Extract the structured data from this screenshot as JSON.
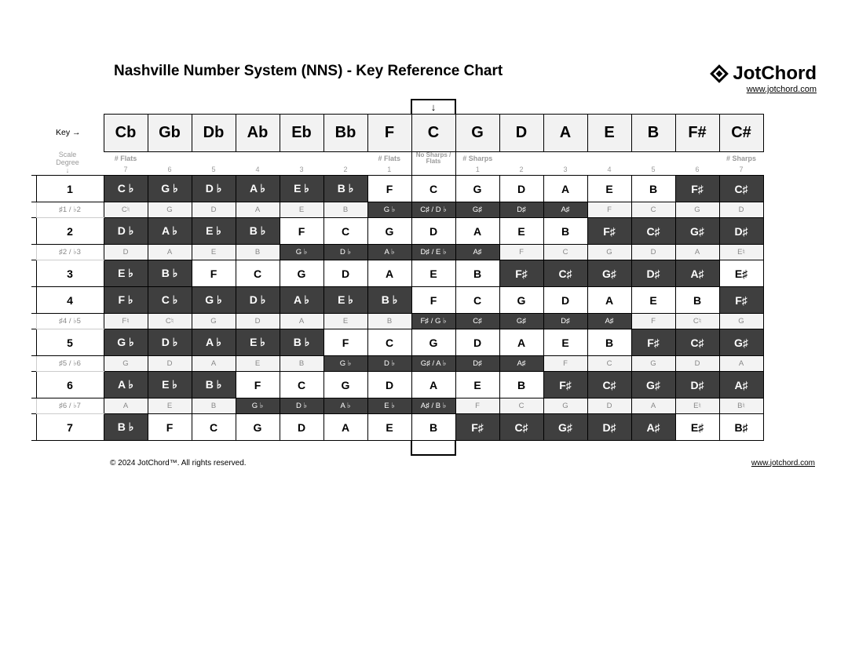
{
  "title": "Nashville Number System (NNS) - Key Reference Chart",
  "brand_name": "JotChord",
  "brand_url": "www.jotchord.com",
  "copyright": "© 2024 JotChord™. All rights reserved.",
  "key_label": "Key →",
  "scale_degree_label": "Scale\nDegree\n↓",
  "arrow_down": "↓",
  "keys": [
    "Cb",
    "Gb",
    "Db",
    "Ab",
    "Eb",
    "Bb",
    "F",
    "C",
    "G",
    "D",
    "A",
    "E",
    "B",
    "F#",
    "C#"
  ],
  "sub_labels": {
    "flats": "# Flats",
    "none": "No Sharps / Flats",
    "sharps": "# Sharps"
  },
  "sub_counts": [
    "7",
    "6",
    "5",
    "4",
    "3",
    "2",
    "1",
    "",
    "1",
    "2",
    "3",
    "4",
    "5",
    "6",
    "7"
  ],
  "colors": {
    "dark_bg": "#3f3f3f",
    "dark_fg": "#ffffff",
    "light_bg": "#ffffff",
    "light_fg": "#000000",
    "header_bg": "#f2f2f2",
    "chrom_light_bg": "#f3f3f3",
    "chrom_light_fg": "#888888",
    "grid": "#000000"
  },
  "main_rows": [
    {
      "deg": "1",
      "cells": [
        {
          "t": "C ♭",
          "d": 1
        },
        {
          "t": "G ♭",
          "d": 1
        },
        {
          "t": "D ♭",
          "d": 1
        },
        {
          "t": "A ♭",
          "d": 1
        },
        {
          "t": "E ♭",
          "d": 1
        },
        {
          "t": "B ♭",
          "d": 1
        },
        {
          "t": "F",
          "d": 0
        },
        {
          "t": "C",
          "d": 0
        },
        {
          "t": "G",
          "d": 0
        },
        {
          "t": "D",
          "d": 0
        },
        {
          "t": "A",
          "d": 0
        },
        {
          "t": "E",
          "d": 0
        },
        {
          "t": "B",
          "d": 0
        },
        {
          "t": "F♯",
          "d": 1
        },
        {
          "t": "C♯",
          "d": 1
        }
      ]
    },
    {
      "deg": "2",
      "cells": [
        {
          "t": "D ♭",
          "d": 1
        },
        {
          "t": "A ♭",
          "d": 1
        },
        {
          "t": "E ♭",
          "d": 1
        },
        {
          "t": "B ♭",
          "d": 1
        },
        {
          "t": "F",
          "d": 0
        },
        {
          "t": "C",
          "d": 0
        },
        {
          "t": "G",
          "d": 0
        },
        {
          "t": "D",
          "d": 0
        },
        {
          "t": "A",
          "d": 0
        },
        {
          "t": "E",
          "d": 0
        },
        {
          "t": "B",
          "d": 0
        },
        {
          "t": "F♯",
          "d": 1
        },
        {
          "t": "C♯",
          "d": 1
        },
        {
          "t": "G♯",
          "d": 1
        },
        {
          "t": "D♯",
          "d": 1
        }
      ]
    },
    {
      "deg": "3",
      "cells": [
        {
          "t": "E ♭",
          "d": 1
        },
        {
          "t": "B ♭",
          "d": 1
        },
        {
          "t": "F",
          "d": 0
        },
        {
          "t": "C",
          "d": 0
        },
        {
          "t": "G",
          "d": 0
        },
        {
          "t": "D",
          "d": 0
        },
        {
          "t": "A",
          "d": 0
        },
        {
          "t": "E",
          "d": 0
        },
        {
          "t": "B",
          "d": 0
        },
        {
          "t": "F♯",
          "d": 1
        },
        {
          "t": "C♯",
          "d": 1
        },
        {
          "t": "G♯",
          "d": 1
        },
        {
          "t": "D♯",
          "d": 1
        },
        {
          "t": "A♯",
          "d": 1
        },
        {
          "t": "E♯",
          "d": 0
        }
      ]
    },
    {
      "deg": "4",
      "cells": [
        {
          "t": "F ♭",
          "d": 1
        },
        {
          "t": "C ♭",
          "d": 1
        },
        {
          "t": "G ♭",
          "d": 1
        },
        {
          "t": "D ♭",
          "d": 1
        },
        {
          "t": "A ♭",
          "d": 1
        },
        {
          "t": "E ♭",
          "d": 1
        },
        {
          "t": "B ♭",
          "d": 1
        },
        {
          "t": "F",
          "d": 0
        },
        {
          "t": "C",
          "d": 0
        },
        {
          "t": "G",
          "d": 0
        },
        {
          "t": "D",
          "d": 0
        },
        {
          "t": "A",
          "d": 0
        },
        {
          "t": "E",
          "d": 0
        },
        {
          "t": "B",
          "d": 0
        },
        {
          "t": "F♯",
          "d": 1
        }
      ]
    },
    {
      "deg": "5",
      "cells": [
        {
          "t": "G ♭",
          "d": 1
        },
        {
          "t": "D ♭",
          "d": 1
        },
        {
          "t": "A ♭",
          "d": 1
        },
        {
          "t": "E ♭",
          "d": 1
        },
        {
          "t": "B ♭",
          "d": 1
        },
        {
          "t": "F",
          "d": 0
        },
        {
          "t": "C",
          "d": 0
        },
        {
          "t": "G",
          "d": 0
        },
        {
          "t": "D",
          "d": 0
        },
        {
          "t": "A",
          "d": 0
        },
        {
          "t": "E",
          "d": 0
        },
        {
          "t": "B",
          "d": 0
        },
        {
          "t": "F♯",
          "d": 1
        },
        {
          "t": "C♯",
          "d": 1
        },
        {
          "t": "G♯",
          "d": 1
        }
      ]
    },
    {
      "deg": "6",
      "cells": [
        {
          "t": "A ♭",
          "d": 1
        },
        {
          "t": "E ♭",
          "d": 1
        },
        {
          "t": "B ♭",
          "d": 1
        },
        {
          "t": "F",
          "d": 0
        },
        {
          "t": "C",
          "d": 0
        },
        {
          "t": "G",
          "d": 0
        },
        {
          "t": "D",
          "d": 0
        },
        {
          "t": "A",
          "d": 0
        },
        {
          "t": "E",
          "d": 0
        },
        {
          "t": "B",
          "d": 0
        },
        {
          "t": "F♯",
          "d": 1
        },
        {
          "t": "C♯",
          "d": 1
        },
        {
          "t": "G♯",
          "d": 1
        },
        {
          "t": "D♯",
          "d": 1
        },
        {
          "t": "A♯",
          "d": 1
        }
      ]
    },
    {
      "deg": "7",
      "cells": [
        {
          "t": "B ♭",
          "d": 1
        },
        {
          "t": "F",
          "d": 0
        },
        {
          "t": "C",
          "d": 0
        },
        {
          "t": "G",
          "d": 0
        },
        {
          "t": "D",
          "d": 0
        },
        {
          "t": "A",
          "d": 0
        },
        {
          "t": "E",
          "d": 0
        },
        {
          "t": "B",
          "d": 0
        },
        {
          "t": "F♯",
          "d": 1
        },
        {
          "t": "C♯",
          "d": 1
        },
        {
          "t": "G♯",
          "d": 1
        },
        {
          "t": "D♯",
          "d": 1
        },
        {
          "t": "A♯",
          "d": 1
        },
        {
          "t": "E♯",
          "d": 0
        },
        {
          "t": "B♯",
          "d": 0
        }
      ]
    }
  ],
  "chrom_rows": [
    {
      "deg": "♯1 / ♭2",
      "cells": [
        {
          "t": "C♮",
          "d": 0
        },
        {
          "t": "G",
          "d": 0
        },
        {
          "t": "D",
          "d": 0
        },
        {
          "t": "A",
          "d": 0
        },
        {
          "t": "E",
          "d": 0
        },
        {
          "t": "B",
          "d": 0
        },
        {
          "t": "G ♭",
          "d": 1
        },
        {
          "t": "C♯ / D ♭",
          "d": 1
        },
        {
          "t": "G♯",
          "d": 1
        },
        {
          "t": "D♯",
          "d": 1
        },
        {
          "t": "A♯",
          "d": 1
        },
        {
          "t": "F",
          "d": 0
        },
        {
          "t": "C",
          "d": 0
        },
        {
          "t": "G",
          "d": 0
        },
        {
          "t": "D",
          "d": 0
        }
      ]
    },
    {
      "deg": "♯2 / ♭3",
      "cells": [
        {
          "t": "D",
          "d": 0
        },
        {
          "t": "A",
          "d": 0
        },
        {
          "t": "E",
          "d": 0
        },
        {
          "t": "B",
          "d": 0
        },
        {
          "t": "G ♭",
          "d": 1
        },
        {
          "t": "D ♭",
          "d": 1
        },
        {
          "t": "A ♭",
          "d": 1
        },
        {
          "t": "D♯ / E ♭",
          "d": 1
        },
        {
          "t": "A♯",
          "d": 1
        },
        {
          "t": "F",
          "d": 0
        },
        {
          "t": "C",
          "d": 0
        },
        {
          "t": "G",
          "d": 0
        },
        {
          "t": "D",
          "d": 0
        },
        {
          "t": "A",
          "d": 0
        },
        {
          "t": "E♮",
          "d": 0
        }
      ]
    },
    {
      "deg": "♯4 / ♭5",
      "cells": [
        {
          "t": "F♮",
          "d": 0
        },
        {
          "t": "C♮",
          "d": 0
        },
        {
          "t": "G",
          "d": 0
        },
        {
          "t": "D",
          "d": 0
        },
        {
          "t": "A",
          "d": 0
        },
        {
          "t": "E",
          "d": 0
        },
        {
          "t": "B",
          "d": 0
        },
        {
          "t": "F♯ / G ♭",
          "d": 1
        },
        {
          "t": "C♯",
          "d": 1
        },
        {
          "t": "G♯",
          "d": 1
        },
        {
          "t": "D♯",
          "d": 1
        },
        {
          "t": "A♯",
          "d": 1
        },
        {
          "t": "F",
          "d": 0
        },
        {
          "t": "C♮",
          "d": 0
        },
        {
          "t": "G",
          "d": 0
        }
      ]
    },
    {
      "deg": "♯5 / ♭6",
      "cells": [
        {
          "t": "G",
          "d": 0
        },
        {
          "t": "D",
          "d": 0
        },
        {
          "t": "A",
          "d": 0
        },
        {
          "t": "E",
          "d": 0
        },
        {
          "t": "B",
          "d": 0
        },
        {
          "t": "G ♭",
          "d": 1
        },
        {
          "t": "D ♭",
          "d": 1
        },
        {
          "t": "G♯ / A ♭",
          "d": 1
        },
        {
          "t": "D♯",
          "d": 1
        },
        {
          "t": "A♯",
          "d": 1
        },
        {
          "t": "F",
          "d": 0
        },
        {
          "t": "C",
          "d": 0
        },
        {
          "t": "G",
          "d": 0
        },
        {
          "t": "D",
          "d": 0
        },
        {
          "t": "A",
          "d": 0
        }
      ]
    },
    {
      "deg": "♯6 / ♭7",
      "cells": [
        {
          "t": "A",
          "d": 0
        },
        {
          "t": "E",
          "d": 0
        },
        {
          "t": "B",
          "d": 0
        },
        {
          "t": "G ♭",
          "d": 1
        },
        {
          "t": "D ♭",
          "d": 1
        },
        {
          "t": "A ♭",
          "d": 1
        },
        {
          "t": "E ♭",
          "d": 1
        },
        {
          "t": "A♯ / B ♭",
          "d": 1
        },
        {
          "t": "F",
          "d": 0
        },
        {
          "t": "C",
          "d": 0
        },
        {
          "t": "G",
          "d": 0
        },
        {
          "t": "D",
          "d": 0
        },
        {
          "t": "A",
          "d": 0
        },
        {
          "t": "E♮",
          "d": 0
        },
        {
          "t": "B♮",
          "d": 0
        }
      ]
    }
  ],
  "layout_order": [
    "m0",
    "c0",
    "m1",
    "c1",
    "m2",
    "m3",
    "c2",
    "m4",
    "c3",
    "m5",
    "c4",
    "m6"
  ]
}
